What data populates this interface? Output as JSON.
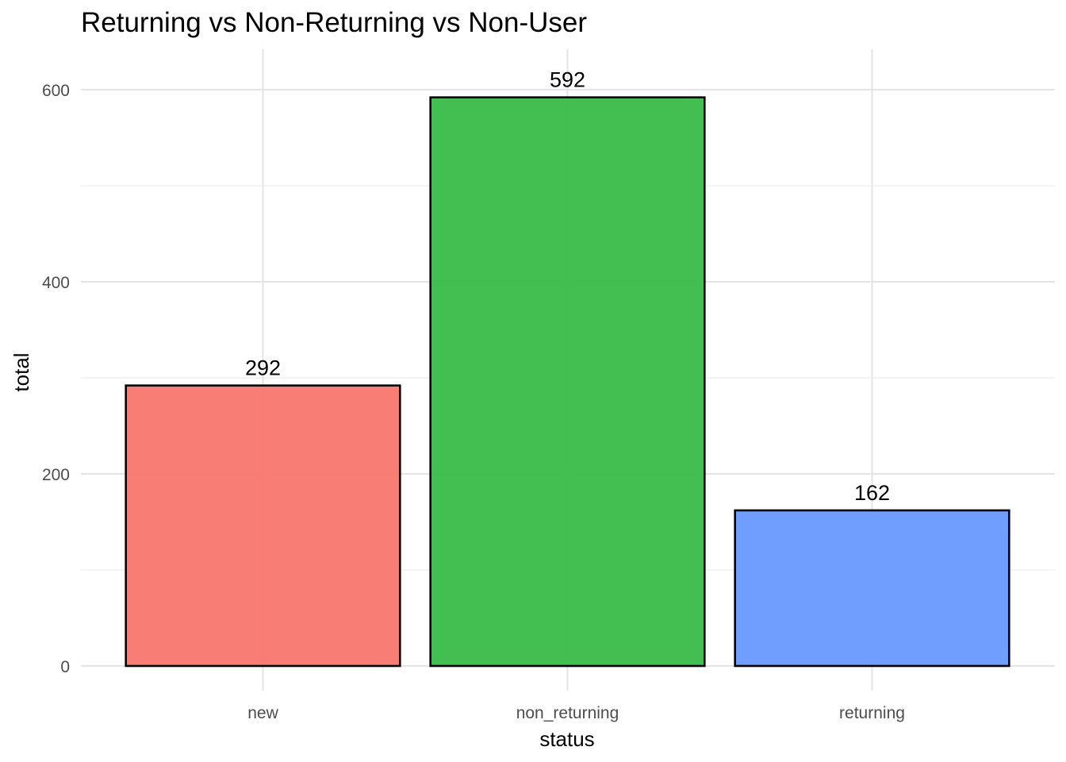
{
  "chart_data": {
    "type": "bar",
    "title": "Returning vs Non-Returning vs Non-User",
    "xlabel": "status",
    "ylabel": "total",
    "categories": [
      "new",
      "non_returning",
      "returning"
    ],
    "values": [
      292,
      592,
      162
    ],
    "data_labels": [
      "292",
      "592",
      "162"
    ],
    "colors": [
      "#f8766d",
      "#39bc48",
      "#6799ff"
    ],
    "ylim": [
      0,
      640
    ],
    "y_ticks": [
      0,
      200,
      400,
      600
    ],
    "y_tick_labels": [
      "0",
      "200",
      "400",
      "600"
    ],
    "grid": true,
    "legend": "none"
  }
}
